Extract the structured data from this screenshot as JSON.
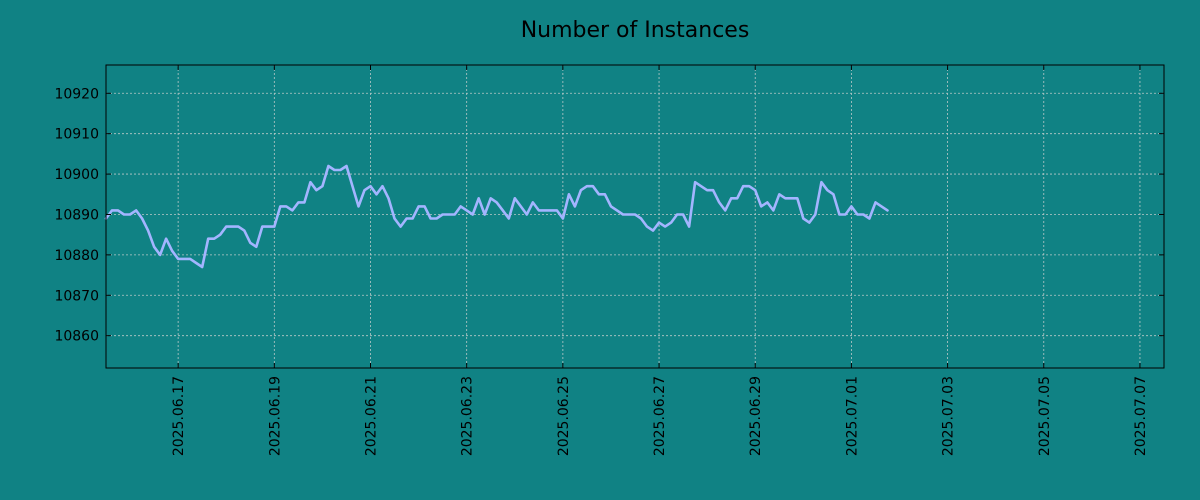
{
  "chart_data": {
    "type": "line",
    "title": "Number of Instances",
    "xlabel": "",
    "ylabel": "",
    "x_start": "2025-06-15",
    "x_step_hours": 3,
    "x_range": [
      "2025-06-15 12:00",
      "2025-07-07 12:00"
    ],
    "ylim": [
      10852,
      10927
    ],
    "yticks": [
      10860,
      10870,
      10880,
      10890,
      10900,
      10910,
      10920
    ],
    "xticks": [
      "2025.06.17",
      "2025.06.19",
      "2025.06.21",
      "2025.06.23",
      "2025.06.25",
      "2025.06.27",
      "2025.06.29",
      "2025.07.01",
      "2025.07.03",
      "2025.07.05",
      "2025.07.07"
    ],
    "grid": true,
    "series": [
      {
        "name": "",
        "color": "#a3b5ff",
        "values": [
          10889,
          10891,
          10891,
          10890,
          10890,
          10891,
          10889,
          10886,
          10882,
          10880,
          10884,
          10881,
          10879,
          10879,
          10879,
          10878,
          10877,
          10884,
          10884,
          10885,
          10887,
          10887,
          10887,
          10886,
          10883,
          10882,
          10887,
          10887,
          10887,
          10892,
          10892,
          10891,
          10893,
          10893,
          10898,
          10896,
          10897,
          10902,
          10901,
          10901,
          10902,
          10897,
          10892,
          10896,
          10897,
          10895,
          10897,
          10894,
          10889,
          10887,
          10889,
          10889,
          10892,
          10892,
          10889,
          10889,
          10890,
          10890,
          10890,
          10892,
          10891,
          10890,
          10894,
          10890,
          10894,
          10893,
          10891,
          10889,
          10894,
          10892,
          10890,
          10893,
          10891,
          10891,
          10891,
          10891,
          10889,
          10895,
          10892,
          10896,
          10897,
          10897,
          10895,
          10895,
          10892,
          10891,
          10890,
          10890,
          10890,
          10889,
          10887,
          10886,
          10888,
          10887,
          10888,
          10890,
          10890,
          10887,
          10898,
          10897,
          10896,
          10896,
          10893,
          10891,
          10894,
          10894,
          10897,
          10897,
          10896,
          10892,
          10893,
          10891,
          10895,
          10894,
          10894,
          10894,
          10889,
          10888,
          10890,
          10898,
          10896,
          10895,
          10890,
          10890,
          10892,
          10890,
          10890,
          10889,
          10893,
          10892,
          10891
        ]
      }
    ]
  }
}
